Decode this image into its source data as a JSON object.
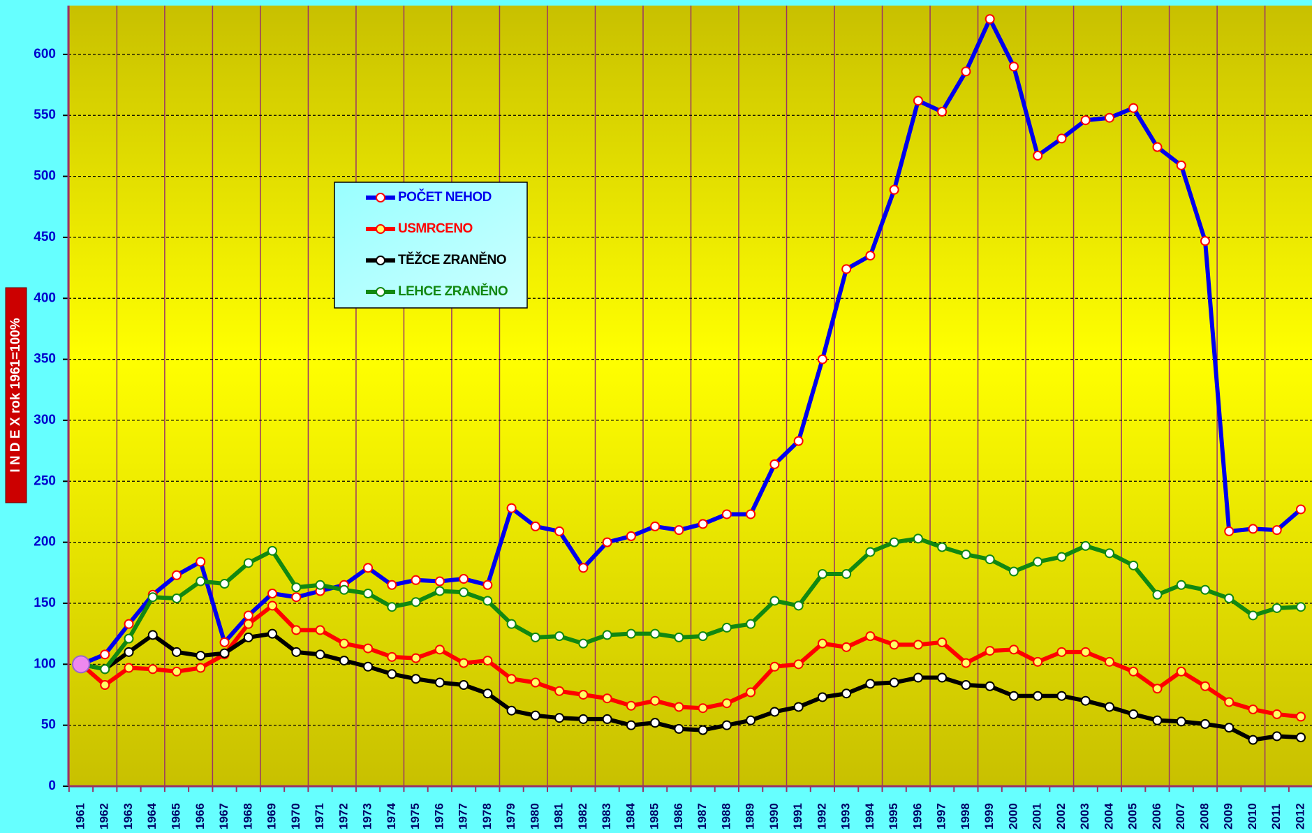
{
  "chart_data": {
    "type": "line",
    "y_axis_label": "I N D E X  rok 1961=100%",
    "categories": [
      "1961",
      "1962",
      "1963",
      "1964",
      "1965",
      "1966",
      "1967",
      "1968",
      "1969",
      "1970",
      "1971",
      "1972",
      "1973",
      "1974",
      "1975",
      "1976",
      "1977",
      "1978",
      "1979",
      "1980",
      "1981",
      "1982",
      "1983",
      "1984",
      "1985",
      "1986",
      "1987",
      "1988",
      "1989",
      "1990",
      "1991",
      "1992",
      "1993",
      "1994",
      "1995",
      "1996",
      "1997",
      "1998",
      "1999",
      "2000",
      "2001",
      "2002",
      "2003",
      "2004",
      "2005",
      "2006",
      "2007",
      "2008",
      "2009",
      "2010",
      "2011",
      "2012"
    ],
    "series": [
      {
        "name": "POČET NEHOD",
        "color": "#0000ee",
        "marker_color": "#ff0000",
        "values": [
          100,
          108,
          133,
          157,
          173,
          184,
          118,
          140,
          158,
          155,
          160,
          165,
          179,
          165,
          169,
          168,
          170,
          165,
          228,
          213,
          209,
          179,
          200,
          205,
          213,
          210,
          215,
          223,
          223,
          264,
          283,
          350,
          424,
          435,
          489,
          562,
          553,
          586,
          629,
          590,
          517,
          531,
          546,
          548,
          556,
          524,
          509,
          447,
          209,
          211,
          210,
          227
        ]
      },
      {
        "name": "USMRCENO",
        "color": "#ff0000",
        "marker_color": "#ff0000",
        "values": [
          100,
          83,
          97,
          96,
          94,
          97,
          108,
          133,
          148,
          128,
          128,
          117,
          113,
          106,
          105,
          112,
          101,
          103,
          88,
          85,
          78,
          75,
          72,
          66,
          70,
          65,
          64,
          68,
          77,
          98,
          100,
          117,
          114,
          123,
          116,
          116,
          118,
          101,
          111,
          112,
          102,
          110,
          110,
          102,
          94,
          80,
          94,
          82,
          69,
          63,
          59,
          57
        ]
      },
      {
        "name": "TĚŽCE ZRANĚNO",
        "color": "#000000",
        "marker_color": "#000000",
        "values": [
          100,
          96,
          110,
          124,
          110,
          107,
          109,
          122,
          125,
          110,
          108,
          103,
          98,
          92,
          88,
          85,
          83,
          76,
          62,
          58,
          56,
          55,
          55,
          50,
          52,
          47,
          46,
          50,
          54,
          61,
          65,
          73,
          76,
          84,
          85,
          89,
          89,
          83,
          82,
          74,
          74,
          74,
          70,
          65,
          59,
          54,
          53,
          51,
          48,
          38,
          41,
          40
        ]
      },
      {
        "name": "LEHCE ZRANĚNO",
        "color": "#118811",
        "marker_color": "#118811",
        "values": [
          100,
          96,
          121,
          155,
          154,
          168,
          166,
          183,
          193,
          163,
          165,
          161,
          158,
          147,
          151,
          160,
          159,
          152,
          133,
          122,
          123,
          117,
          124,
          125,
          125,
          122,
          123,
          130,
          133,
          152,
          148,
          174,
          174,
          192,
          200,
          203,
          196,
          190,
          186,
          176,
          184,
          188,
          197,
          191,
          181,
          157,
          165,
          161,
          154,
          140,
          146,
          147
        ]
      }
    ],
    "ylim": [
      0,
      640
    ],
    "yticks": [
      0,
      50,
      100,
      150,
      200,
      250,
      300,
      350,
      400,
      450,
      500,
      550,
      600
    ],
    "grid": true
  }
}
